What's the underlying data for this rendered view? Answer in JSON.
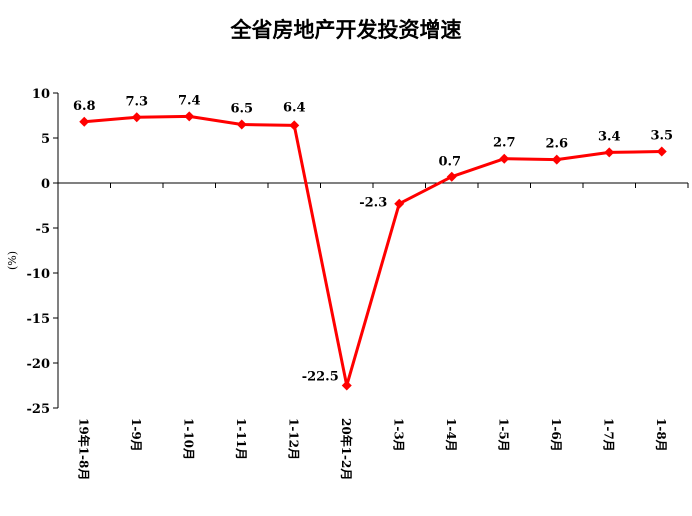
{
  "chart_data": {
    "type": "line",
    "title": "全省房地产开发投资增速",
    "ylabel": "(%)",
    "xlabel": "",
    "ylim": [
      -25,
      10
    ],
    "yticks": [
      10,
      5,
      0,
      -5,
      -10,
      -15,
      -20,
      -25
    ],
    "grid": false,
    "legend": "none",
    "categories": [
      "19年1-8月",
      "1-9月",
      "1-10月",
      "1-11月",
      "1-12月",
      "20年1-2月",
      "1-3月",
      "1-4月",
      "1-5月",
      "1-6月",
      "1-7月",
      "1-8月"
    ],
    "series": [
      {
        "values": [
          6.8,
          7.3,
          7.4,
          6.5,
          6.4,
          -22.5,
          -2.3,
          0.7,
          2.7,
          2.6,
          3.4,
          3.5
        ],
        "labels": [
          "6.8",
          "7.3",
          "7.4",
          "6.5",
          "6.4",
          "-22.5",
          "-2.3",
          "0.7",
          "2.7",
          "2.6",
          "3.4",
          "3.5"
        ],
        "color": "#ff0000"
      }
    ]
  }
}
